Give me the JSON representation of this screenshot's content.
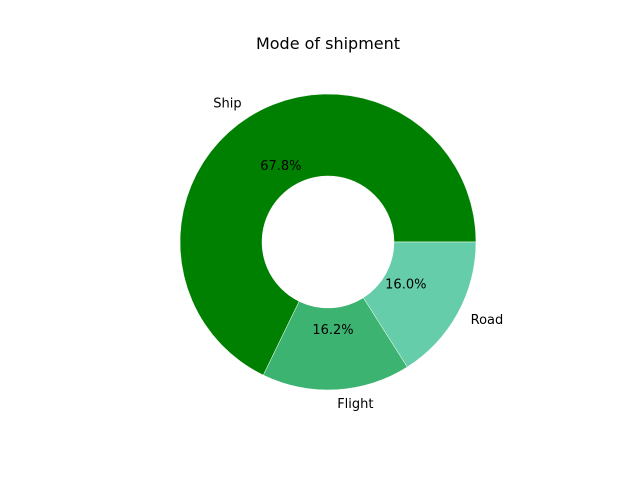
{
  "chart_data": {
    "type": "pie",
    "variant": "donut",
    "title": "Mode of shipment",
    "categories": [
      "Ship",
      "Flight",
      "Road"
    ],
    "values": [
      67.8,
      16.2,
      16.0
    ],
    "value_labels": [
      "67.8%",
      "16.2%",
      "16.0%"
    ],
    "colors": [
      "#008000",
      "#3CB371",
      "#66CDAA"
    ],
    "start_angle_deg": 0,
    "direction": "counterclockwise",
    "legend": "none"
  }
}
